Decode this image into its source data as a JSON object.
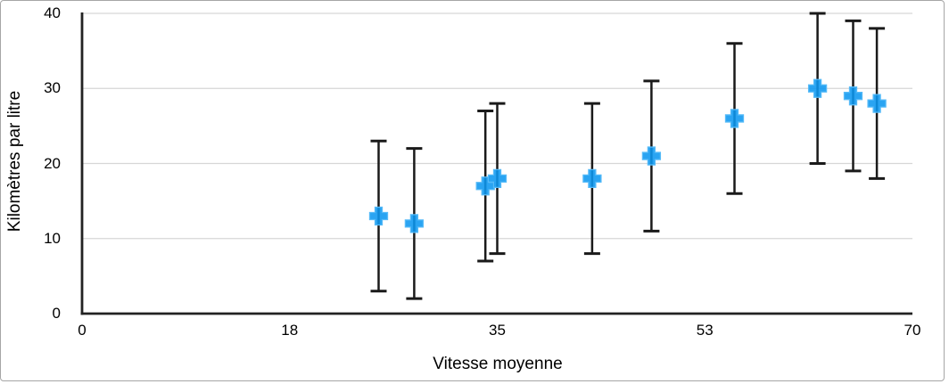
{
  "figure": {
    "background": "#FFFFFF",
    "border_color": "#A6A6A6"
  },
  "chart_data": {
    "type": "scatter",
    "title": "",
    "xlabel": "Vitesse moyenne",
    "ylabel": "Kilomètres par litre",
    "x_tick_labels": [
      "0",
      "18",
      "35",
      "53",
      "70"
    ],
    "y_tick_labels": [
      "0",
      "10",
      "20",
      "30",
      "40"
    ],
    "xlim": [
      0,
      70
    ],
    "ylim": [
      0,
      40
    ],
    "grid": "horizontal",
    "legend": "none",
    "marker_shape": "plus",
    "error_bars": {
      "direction": "vertical",
      "positive": 10,
      "negative": 10,
      "style": "capped"
    },
    "series": [
      {
        "name": "Kilomètres par litre",
        "points": [
          {
            "x": 25,
            "y": 13
          },
          {
            "x": 28,
            "y": 12
          },
          {
            "x": 34,
            "y": 17
          },
          {
            "x": 35,
            "y": 18
          },
          {
            "x": 43,
            "y": 18
          },
          {
            "x": 48,
            "y": 21
          },
          {
            "x": 55,
            "y": 26
          },
          {
            "x": 62,
            "y": 30
          },
          {
            "x": 65,
            "y": 29
          },
          {
            "x": 67,
            "y": 28
          }
        ]
      }
    ],
    "colors": {
      "marker": "#0D97F0",
      "marker_rim": "#55BAF8",
      "error_bar": "#1A1A1A",
      "axis": "#222222",
      "gridline": "#D6D6D6",
      "text": "#000000",
      "background": "#FFFFFF"
    }
  }
}
